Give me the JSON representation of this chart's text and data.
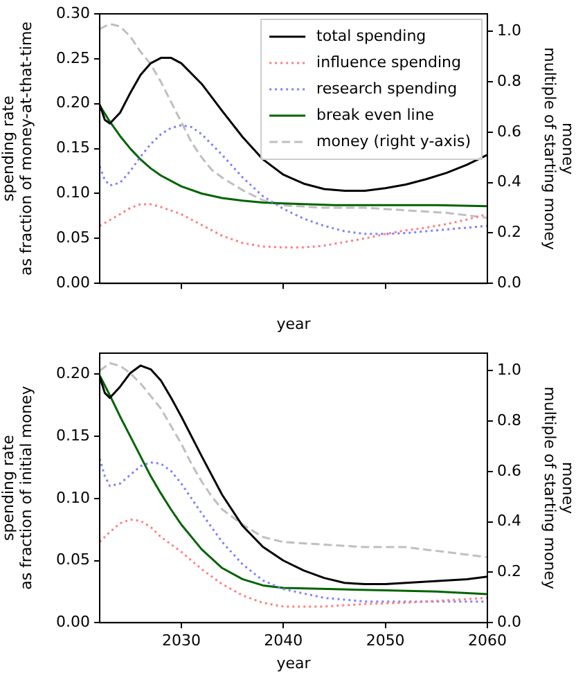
{
  "chart_data": [
    {
      "type": "line",
      "xlabel": "year",
      "ylabel": "spending rate\nas fraction of money-at-that-time",
      "y2label": "money\nmultiple of starting money",
      "xlim": [
        2022,
        2060
      ],
      "xticks": [
        2030,
        2040,
        2050
      ],
      "ylim": [
        0,
        0.3
      ],
      "yticks": [
        {
          "value": 0,
          "label": "0.00"
        },
        {
          "value": 0.05,
          "label": "0.05"
        },
        {
          "value": 0.1,
          "label": "0.10"
        },
        {
          "value": 0.15,
          "label": "0.15"
        },
        {
          "value": 0.2,
          "label": "0.20"
        },
        {
          "value": 0.25,
          "label": "0.25"
        },
        {
          "value": 0.3,
          "label": "0.30"
        }
      ],
      "y2lim": [
        0,
        1.07
      ],
      "y2ticks": [
        {
          "value": 0,
          "label": "0.0"
        },
        {
          "value": 0.2,
          "label": "0.2"
        },
        {
          "value": 0.4,
          "label": "0.4"
        },
        {
          "value": 0.6,
          "label": "0.6"
        },
        {
          "value": 0.8,
          "label": "0.8"
        },
        {
          "value": 1,
          "label": "1.0"
        }
      ],
      "tick_labels": "y",
      "legend": "top right",
      "series": [
        {
          "name": "total spending",
          "color": "#000000",
          "line_style": "solid",
          "x": [
            2022,
            2022.5,
            2023,
            2024,
            2025,
            2026,
            2027,
            2028,
            2029,
            2030,
            2032,
            2034,
            2036,
            2038,
            2040,
            2042,
            2044,
            2046,
            2048,
            2050,
            2052,
            2054,
            2056,
            2058,
            2060
          ],
          "values": [
            0.199,
            0.182,
            0.178,
            0.19,
            0.212,
            0.232,
            0.245,
            0.251,
            0.251,
            0.245,
            0.222,
            0.192,
            0.163,
            0.138,
            0.121,
            0.111,
            0.105,
            0.103,
            0.103,
            0.106,
            0.11,
            0.116,
            0.123,
            0.132,
            0.143
          ]
        },
        {
          "name": "influence spending",
          "color": "#ff7f7f",
          "line_style": "dotted",
          "x": [
            2022,
            2024,
            2025,
            2026,
            2027,
            2028,
            2030,
            2032,
            2034,
            2036,
            2038,
            2040,
            2042,
            2044,
            2046,
            2048,
            2050,
            2052,
            2054,
            2056,
            2058,
            2060
          ],
          "values": [
            0.064,
            0.077,
            0.084,
            0.088,
            0.088,
            0.085,
            0.077,
            0.065,
            0.053,
            0.045,
            0.041,
            0.04,
            0.04,
            0.042,
            0.046,
            0.05,
            0.055,
            0.059,
            0.062,
            0.066,
            0.071,
            0.077
          ]
        },
        {
          "name": "research spending",
          "color": "#7f7fff",
          "line_style": "dotted",
          "x": [
            2022,
            2022.5,
            2023,
            2024,
            2025,
            2026,
            2027,
            2028,
            2029,
            2030,
            2031,
            2032,
            2034,
            2036,
            2038,
            2040,
            2042,
            2044,
            2046,
            2048,
            2050,
            2052,
            2054,
            2056,
            2058,
            2060
          ],
          "values": [
            0.13,
            0.115,
            0.109,
            0.112,
            0.125,
            0.141,
            0.155,
            0.166,
            0.173,
            0.176,
            0.174,
            0.166,
            0.143,
            0.118,
            0.097,
            0.083,
            0.072,
            0.064,
            0.058,
            0.055,
            0.055,
            0.056,
            0.058,
            0.06,
            0.062,
            0.064
          ]
        },
        {
          "name": "break even line",
          "color": "#006400",
          "line_style": "solid",
          "x": [
            2022,
            2023,
            2024,
            2025,
            2026,
            2027,
            2028,
            2030,
            2032,
            2034,
            2036,
            2038,
            2040,
            2045,
            2050,
            2055,
            2060
          ],
          "values": [
            0.198,
            0.18,
            0.164,
            0.15,
            0.138,
            0.128,
            0.12,
            0.108,
            0.1,
            0.095,
            0.092,
            0.09,
            0.089,
            0.087,
            0.087,
            0.087,
            0.086
          ]
        },
        {
          "name": "money (right y-axis)",
          "color": "#bfbfbf",
          "line_style": "dashed",
          "axis": "y2",
          "x": [
            2022,
            2023,
            2024,
            2025,
            2026,
            2027,
            2028,
            2029,
            2030,
            2031,
            2032,
            2033,
            2034,
            2036,
            2038,
            2040,
            2044,
            2048,
            2052,
            2056,
            2060
          ],
          "values": [
            1.01,
            1.03,
            1.02,
            0.98,
            0.92,
            0.87,
            0.8,
            0.72,
            0.64,
            0.56,
            0.5,
            0.45,
            0.42,
            0.37,
            0.33,
            0.31,
            0.3,
            0.3,
            0.29,
            0.28,
            0.26
          ]
        }
      ]
    },
    {
      "type": "line",
      "xlabel": "year",
      "ylabel": "spending rate\nas fraction of initial money",
      "y2label": "money\nmultiple of starting money",
      "xlim": [
        2022,
        2060
      ],
      "xticks": [
        2030,
        2040,
        2050,
        2060
      ],
      "ylim": [
        0,
        0.217
      ],
      "yticks": [
        {
          "value": 0,
          "label": "0.00"
        },
        {
          "value": 0.05,
          "label": "0.05"
        },
        {
          "value": 0.1,
          "label": "0.10"
        },
        {
          "value": 0.15,
          "label": "0.15"
        },
        {
          "value": 0.2,
          "label": "0.20"
        }
      ],
      "y2lim": [
        0,
        1.07
      ],
      "y2ticks": [
        {
          "value": 0,
          "label": "0.0"
        },
        {
          "value": 0.2,
          "label": "0.2"
        },
        {
          "value": 0.4,
          "label": "0.4"
        },
        {
          "value": 0.6,
          "label": "0.6"
        },
        {
          "value": 0.8,
          "label": "0.8"
        },
        {
          "value": 1,
          "label": "1.0"
        }
      ],
      "series": [
        {
          "color": "#000000",
          "line_style": "solid",
          "x": [
            2022,
            2022.5,
            2023,
            2024,
            2025,
            2026,
            2027,
            2028,
            2029,
            2030,
            2032,
            2034,
            2036,
            2038,
            2040,
            2042,
            2044,
            2046,
            2048,
            2050,
            2052,
            2054,
            2056,
            2058,
            2060
          ],
          "values": [
            0.198,
            0.185,
            0.181,
            0.19,
            0.201,
            0.207,
            0.204,
            0.195,
            0.181,
            0.166,
            0.134,
            0.103,
            0.078,
            0.061,
            0.05,
            0.042,
            0.036,
            0.032,
            0.031,
            0.031,
            0.032,
            0.033,
            0.034,
            0.035,
            0.037
          ]
        },
        {
          "color": "#ff7f7f",
          "line_style": "dotted",
          "x": [
            2022,
            2023,
            2024,
            2025,
            2026,
            2027,
            2028,
            2030,
            2032,
            2034,
            2036,
            2038,
            2040,
            2044,
            2048,
            2052,
            2056,
            2060
          ],
          "values": [
            0.065,
            0.073,
            0.08,
            0.083,
            0.082,
            0.077,
            0.069,
            0.057,
            0.043,
            0.031,
            0.022,
            0.016,
            0.013,
            0.013,
            0.015,
            0.016,
            0.018,
            0.02
          ]
        },
        {
          "color": "#7f7fff",
          "line_style": "dotted",
          "x": [
            2022,
            2022.5,
            2023,
            2024,
            2025,
            2026,
            2027,
            2028,
            2029,
            2030,
            2032,
            2034,
            2036,
            2038,
            2040,
            2044,
            2048,
            2052,
            2056,
            2060
          ],
          "values": [
            0.132,
            0.118,
            0.11,
            0.112,
            0.119,
            0.126,
            0.129,
            0.128,
            0.122,
            0.112,
            0.088,
            0.065,
            0.047,
            0.034,
            0.027,
            0.02,
            0.017,
            0.017,
            0.017,
            0.017
          ]
        },
        {
          "color": "#006400",
          "line_style": "solid",
          "x": [
            2022,
            2023,
            2024,
            2025,
            2026,
            2027,
            2028,
            2029,
            2030,
            2032,
            2034,
            2036,
            2038,
            2040,
            2045,
            2050,
            2055,
            2060
          ],
          "values": [
            0.199,
            0.183,
            0.166,
            0.15,
            0.134,
            0.118,
            0.104,
            0.091,
            0.079,
            0.059,
            0.044,
            0.035,
            0.03,
            0.028,
            0.027,
            0.026,
            0.025,
            0.023
          ]
        },
        {
          "color": "#bfbfbf",
          "line_style": "dashed",
          "axis": "y2",
          "x": [
            2022,
            2023,
            2024,
            2025,
            2026,
            2027,
            2028,
            2029,
            2030,
            2031,
            2032,
            2033,
            2034,
            2036,
            2038,
            2040,
            2044,
            2048,
            2052,
            2056,
            2060
          ],
          "values": [
            1.0,
            1.03,
            1.02,
            0.99,
            0.95,
            0.9,
            0.85,
            0.78,
            0.71,
            0.63,
            0.56,
            0.5,
            0.45,
            0.39,
            0.34,
            0.32,
            0.31,
            0.3,
            0.3,
            0.28,
            0.26
          ]
        }
      ]
    }
  ]
}
